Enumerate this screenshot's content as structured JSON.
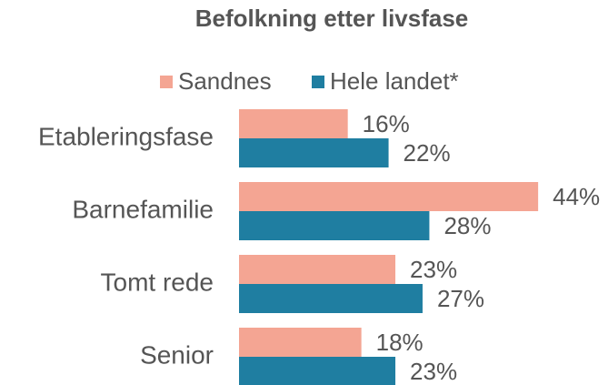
{
  "chart_data": {
    "type": "bar",
    "orientation": "horizontal",
    "title": "Befolkning etter livsfase",
    "categories": [
      "Etableringsfase",
      "Barnefamilie",
      "Tomt rede",
      "Senior"
    ],
    "series": [
      {
        "name": "Sandnes",
        "color": "#f4a593",
        "values": [
          16,
          44,
          23,
          18
        ],
        "value_labels": [
          "16%",
          "44%",
          "23%",
          "18%"
        ]
      },
      {
        "name": "Hele landet*",
        "color": "#1f7ea1",
        "values": [
          22,
          28,
          27,
          23
        ],
        "value_labels": [
          "22%",
          "28%",
          "27%",
          "23%"
        ]
      }
    ],
    "legend": "top"
  }
}
